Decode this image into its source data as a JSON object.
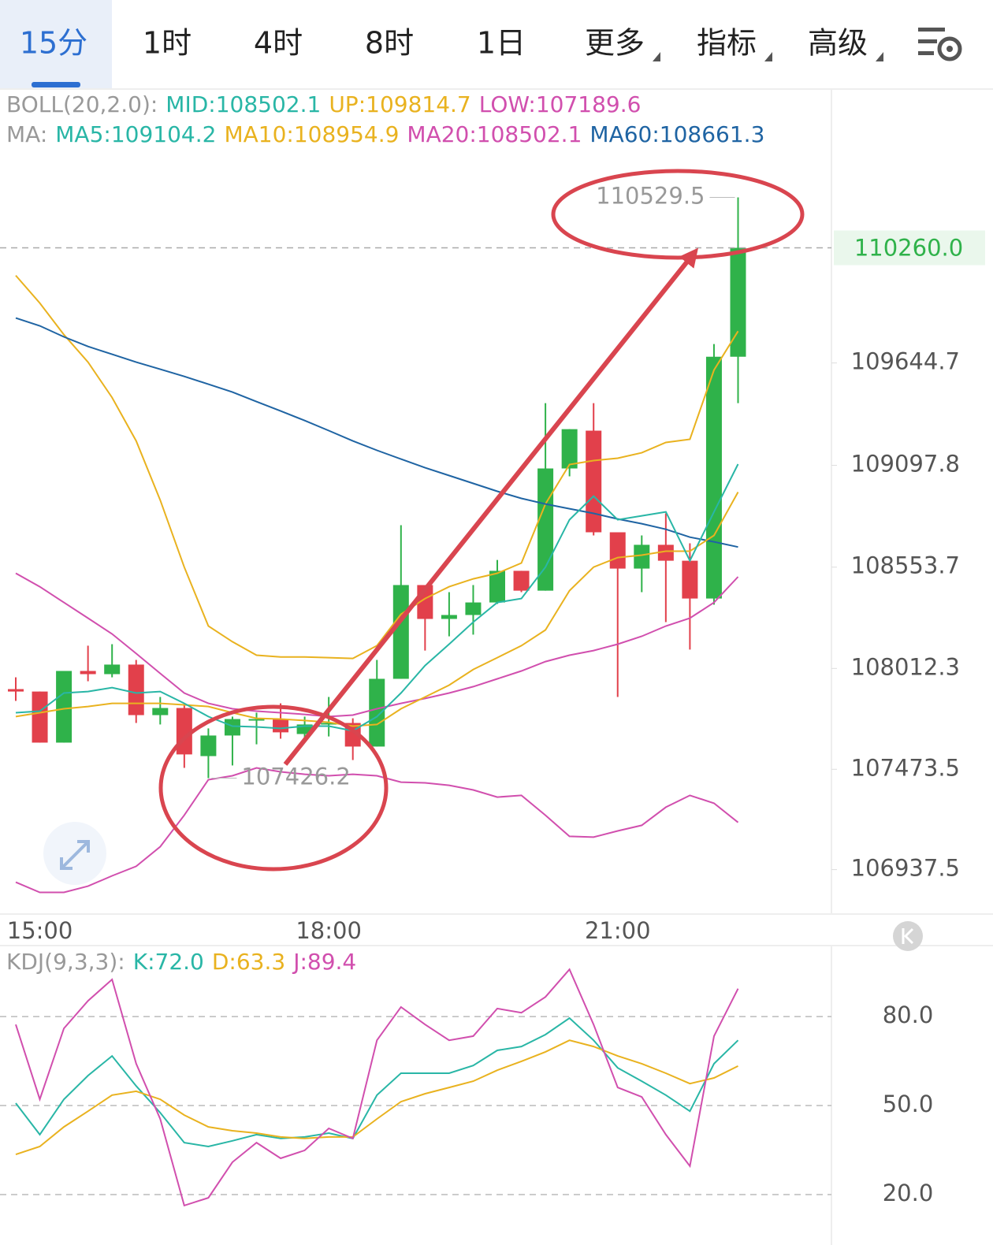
{
  "tabs": [
    {
      "label": "15分",
      "active": true
    },
    {
      "label": "1时"
    },
    {
      "label": "4时"
    },
    {
      "label": "8时"
    },
    {
      "label": "1日"
    },
    {
      "label": "更多",
      "dropdown": true
    },
    {
      "label": "指标",
      "dropdown": true
    },
    {
      "label": "高级",
      "dropdown": true
    }
  ],
  "chart_data": [
    {
      "type": "candlestick",
      "legends": [
        {
          "label": "BOLL(20,2.0):",
          "items": [
            {
              "text": "MID:108502.1",
              "color": "#29b6a6"
            },
            {
              "text": "UP:109814.7",
              "color": "#e9b21f"
            },
            {
              "text": "LOW:107189.6",
              "color": "#d14fae"
            }
          ]
        },
        {
          "label": "MA:",
          "items": [
            {
              "text": "MA5:109104.2",
              "color": "#29b6a6"
            },
            {
              "text": "MA10:108954.9",
              "color": "#e9b21f"
            },
            {
              "text": "MA20:108502.1",
              "color": "#d14fae"
            },
            {
              "text": "MA60:108661.3",
              "color": "#1f64a3"
            }
          ]
        }
      ],
      "categories": [
        null,
        "15:00",
        null,
        null,
        null,
        null,
        null,
        null,
        null,
        null,
        null,
        null,
        null,
        "18:00",
        null,
        null,
        null,
        null,
        null,
        null,
        null,
        null,
        null,
        null,
        null,
        "21:00",
        null,
        null,
        null,
        null,
        null
      ],
      "open": [
        107902,
        107889,
        107616,
        107999,
        107982,
        108033,
        107763,
        107801,
        107544,
        107654,
        107734,
        107742,
        107662,
        107713,
        107721,
        107595,
        107957,
        108458,
        108277,
        108298,
        108365,
        108534,
        108428,
        109081,
        109283,
        108740,
        108546,
        108673,
        108588,
        108386,
        109678
      ],
      "high": [
        107965,
        107889,
        107999,
        108134,
        108142,
        108058,
        107860,
        107826,
        107692,
        107755,
        107776,
        107826,
        107755,
        107860,
        107746,
        108058,
        108778,
        108458,
        108420,
        108458,
        108592,
        108534,
        109430,
        109291,
        109430,
        108740,
        108723,
        108841,
        108681,
        109746,
        110529.5
      ],
      "low": [
        107839,
        107616,
        107616,
        107944,
        107965,
        107721,
        107713,
        107481,
        107426.2,
        107494,
        107607,
        107637,
        107641,
        107649,
        107523,
        107595,
        107957,
        108108,
        108184,
        108193,
        108357,
        108420,
        108428,
        109039,
        108723,
        107860,
        108420,
        108260,
        108113,
        108353,
        109430
      ],
      "close": [
        107889,
        107616,
        107999,
        107982,
        108033,
        107763,
        107801,
        107553,
        107654,
        107742,
        107742,
        107671,
        107713,
        107721,
        107595,
        107957,
        108458,
        108277,
        108298,
        108365,
        108534,
        108428,
        109081,
        109291,
        108740,
        108546,
        108673,
        108588,
        108386,
        109678,
        110260
      ],
      "up_color": "#2fb24a",
      "down_color": "#e2404b",
      "last_price_label": "110260.0",
      "series": [
        {
          "color": "#e9b21f",
          "values": [
            110112,
            109965,
            109796,
            109649,
            109460,
            109228,
            108912,
            108554,
            108239,
            108155,
            108083,
            108074,
            108074,
            108070,
            108066,
            108134,
            108302,
            108386,
            108449,
            108491,
            108521,
            108576,
            108891,
            109102,
            109123,
            109136,
            109165,
            109220,
            109237,
            109607,
            109814.7
          ]
        },
        {
          "color": "#d14fae",
          "values": [
            106870,
            106816,
            106816,
            106849,
            106904,
            106955,
            107060,
            107228,
            107418,
            107439,
            107481,
            107460,
            107447,
            107439,
            107447,
            107439,
            107405,
            107401,
            107388,
            107363,
            107325,
            107334,
            107228,
            107115,
            107111,
            107144,
            107174,
            107271,
            107334,
            107292,
            107189.6
          ]
        },
        {
          "color": "#d14fae",
          "values": [
            108521,
            108449,
            108365,
            108281,
            108197,
            108092,
            107986,
            107881,
            107826,
            107797,
            107784,
            107776,
            107767,
            107755,
            107763,
            107797,
            107826,
            107852,
            107881,
            107915,
            107957,
            107999,
            108049,
            108083,
            108108,
            108142,
            108184,
            108239,
            108281,
            108365,
            108502.1
          ]
        },
        {
          "color": "#1f64a3",
          "values": [
            109885,
            109843,
            109784,
            109733,
            109691,
            109649,
            109611,
            109573,
            109531,
            109489,
            109438,
            109388,
            109337,
            109283,
            109228,
            109178,
            109131,
            109085,
            109043,
            109001,
            108959,
            108921,
            108891,
            108866,
            108841,
            108811,
            108786,
            108756,
            108714,
            108689,
            108661.3
          ]
        },
        {
          "color": "#e9b21f",
          "values": [
            107755,
            107776,
            107797,
            107809,
            107826,
            107826,
            107826,
            107818,
            107809,
            107776,
            107746,
            107742,
            107734,
            107725,
            107704,
            107713,
            107797,
            107860,
            107923,
            108007,
            108070,
            108134,
            108218,
            108428,
            108554,
            108605,
            108618,
            108639,
            108639,
            108723,
            108954.9
          ]
        },
        {
          "color": "#29b6a6",
          "values": [
            107776,
            107784,
            107881,
            107889,
            107910,
            107881,
            107889,
            107826,
            107755,
            107704,
            107700,
            107692,
            107704,
            107704,
            107679,
            107755,
            107881,
            108028,
            108142,
            108260,
            108365,
            108386,
            108554,
            108807,
            108933,
            108807,
            108828,
            108849,
            108588,
            108849,
            109104.2
          ]
        }
      ],
      "ylim": [
        106700,
        111100
      ],
      "yticks": [
        109644.7,
        109097.8,
        108553.7,
        108012.3,
        107473.5,
        106937.5
      ]
    },
    {
      "type": "line",
      "legends": [
        {
          "label": "KDJ(9,3,3):",
          "items": [
            {
              "text": "K:72.0",
              "color": "#29b6a6"
            },
            {
              "text": "D:63.3",
              "color": "#e9b21f"
            },
            {
              "text": "J:89.4",
              "color": "#d14fae"
            }
          ]
        }
      ],
      "series": [
        {
          "color": "#29b6a6",
          "values": [
            50.8,
            40.2,
            52.1,
            60.1,
            66.7,
            56.6,
            47.6,
            37.5,
            36.2,
            38.1,
            40.2,
            38.9,
            39.4,
            40.7,
            38.9,
            53.5,
            60.9,
            60.9,
            60.9,
            63.5,
            68.6,
            69.9,
            73.9,
            79.5,
            72.0,
            62.7,
            58.2,
            53.5,
            48.1,
            64.1,
            72.0
          ]
        },
        {
          "color": "#e9b21f",
          "values": [
            33.5,
            36.2,
            42.8,
            48.1,
            53.5,
            54.8,
            52.1,
            46.8,
            42.8,
            41.5,
            40.7,
            39.4,
            38.9,
            39.4,
            39.4,
            45.5,
            51.3,
            54.0,
            56.1,
            58.2,
            61.9,
            64.9,
            68.1,
            72.0,
            69.9,
            66.7,
            64.1,
            60.9,
            57.4,
            59.3,
            63.3
          ]
        },
        {
          "color": "#d14fae",
          "values": [
            77.3,
            52.1,
            76.0,
            85.3,
            92.5,
            64.1,
            45.5,
            16.3,
            18.9,
            30.9,
            37.5,
            32.2,
            34.9,
            42.3,
            38.9,
            72.0,
            83.2,
            77.3,
            72.0,
            73.4,
            82.7,
            81.3,
            86.6,
            95.9,
            77.3,
            56.1,
            52.9,
            40.2,
            29.6,
            73.4,
            89.4
          ]
        }
      ],
      "ylim": [
        8.3,
        102.6
      ],
      "yticks": [
        {
          "value": 80,
          "label": "80.0"
        },
        {
          "value": 50,
          "label": "50.0"
        },
        {
          "value": 20,
          "label": "20.0"
        }
      ],
      "grid": true
    }
  ]
}
